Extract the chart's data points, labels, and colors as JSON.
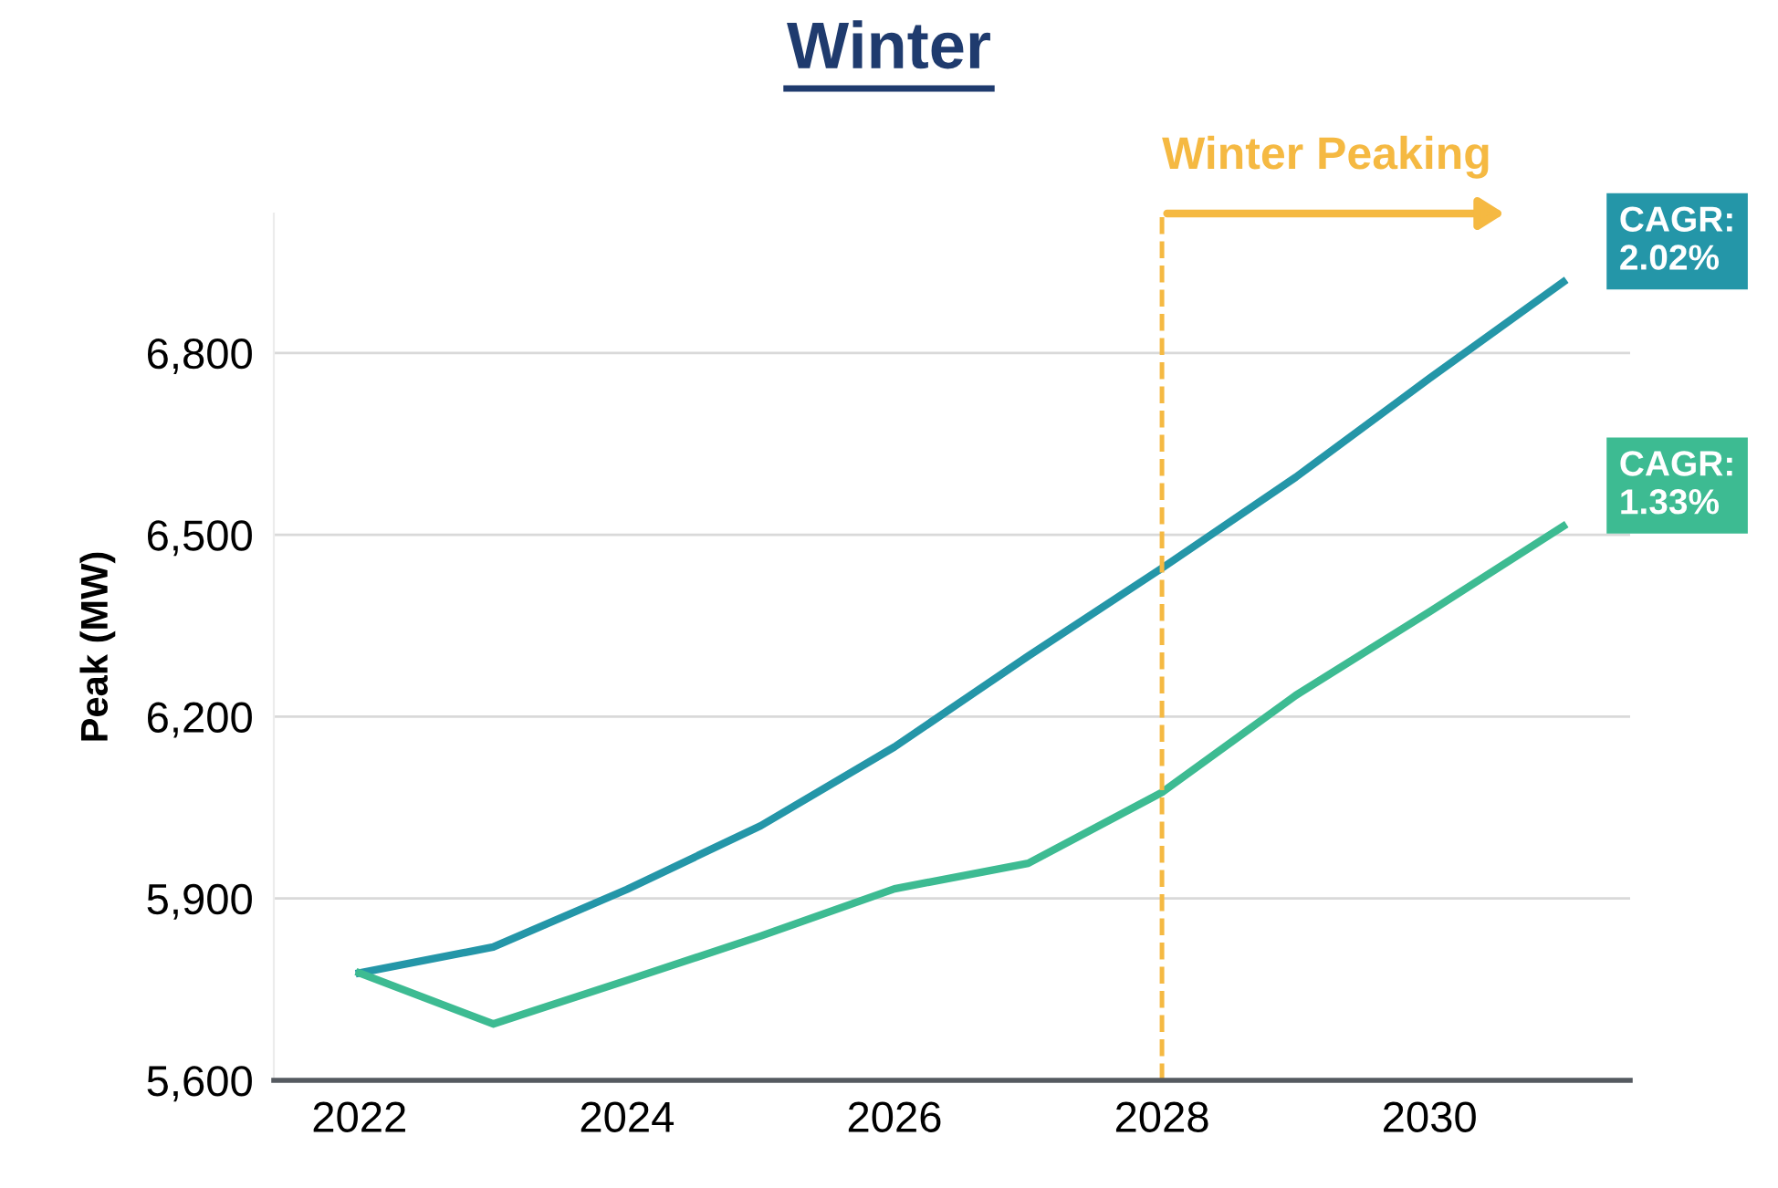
{
  "chart_data": {
    "type": "line",
    "title": "Winter",
    "ylabel": "Peak (MW)",
    "x": [
      2022,
      2023,
      2024,
      2025,
      2026,
      2027,
      2028,
      2029,
      2030,
      2031
    ],
    "series": [
      {
        "color": "#2496a8",
        "values": [
          5777,
          5820,
          5915,
          6020,
          6150,
          6300,
          6445,
          6595,
          6758,
          6917
        ]
      },
      {
        "color": "#3dbb92",
        "values": [
          5777,
          5693,
          5765,
          5838,
          5916,
          5958,
          6075,
          6235,
          6373,
          6514
        ]
      }
    ],
    "xlim": [
      2021.36,
      2031.5
    ],
    "xticks": [
      2022,
      2024,
      2026,
      2028,
      2030
    ],
    "ylim": [
      5600,
      7030
    ],
    "yticks": [
      {
        "value": 5600,
        "label": "5,600"
      },
      {
        "value": 5900,
        "label": "5,900"
      },
      {
        "value": 6200,
        "label": "6,200"
      },
      {
        "value": 6500,
        "label": "6,500"
      },
      {
        "value": 6800,
        "label": "6,800"
      }
    ],
    "grid": "y",
    "marker": "none",
    "line_style": "solid",
    "ref_lines": [
      {
        "axis": "x",
        "value": 2028,
        "label": "Winter Peaking",
        "color": "#f5b942",
        "line_style": "dashed"
      }
    ],
    "annotations": [
      {
        "text": "CAGR:\n2.02%",
        "x": 2031,
        "y": 6917
      },
      {
        "text": "CAGR:\n1.33%",
        "x": 2031,
        "y": 6514
      }
    ]
  }
}
